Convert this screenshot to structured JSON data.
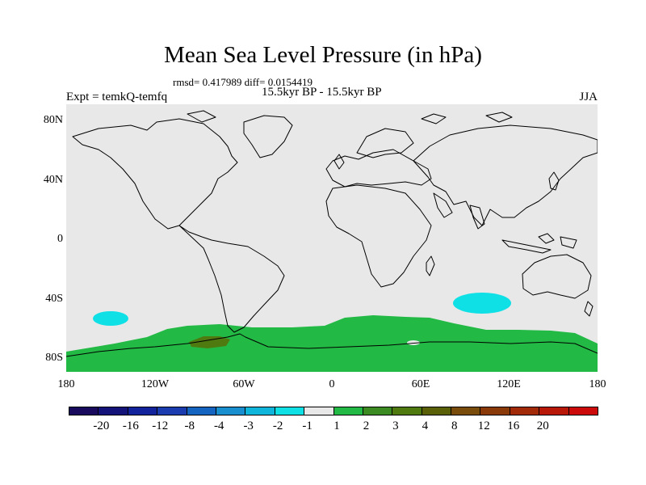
{
  "title": "Mean Sea Level Pressure (in hPa)",
  "stats": "rmsd= 0.417989 diff= 0.0154419",
  "period": "15.5kyr BP - 15.5kyr BP",
  "experiment": "Expt = temkQ-temfq",
  "season": "JJA",
  "lat_labels": [
    "80N",
    "40N",
    "0",
    "40S",
    "80S"
  ],
  "lon_labels": [
    "180",
    "120W",
    "60W",
    "0",
    "60E",
    "120E",
    "180"
  ],
  "colorbar": {
    "colors": [
      "#1a0a5e",
      "#13137a",
      "#12239c",
      "#1a3cae",
      "#1565c0",
      "#1a8fd0",
      "#10b5dc",
      "#0ee0e6",
      "#e8e8e8",
      "#22b944",
      "#3c8a22",
      "#4f7a10",
      "#5a6008",
      "#7a4c0c",
      "#8a3a08",
      "#a32a08",
      "#b81808",
      "#cc0a0a"
    ],
    "labels": [
      "-20",
      "-16",
      "-12",
      "-8",
      "-4",
      "-3",
      "-2",
      "-1",
      "1",
      "2",
      "3",
      "4",
      "8",
      "12",
      "16",
      "20"
    ]
  },
  "map": {
    "background": "#e8e8e8",
    "positive_color": "#22b944",
    "negative_color": "#0ee0e6",
    "strong_positive_color": "#4f7a10"
  }
}
